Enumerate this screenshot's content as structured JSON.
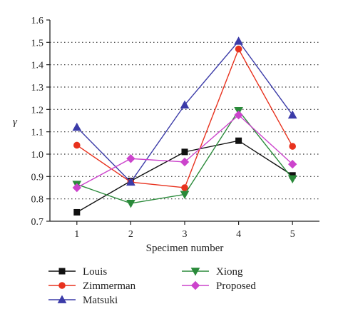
{
  "chart_data": {
    "type": "line",
    "title": "",
    "xlabel": "Specimen number",
    "ylabel": "γ",
    "x": [
      1,
      2,
      3,
      4,
      5
    ],
    "xlim": [
      0.5,
      5.5
    ],
    "ylim": [
      0.7,
      1.6
    ],
    "yticks": [
      "0.7",
      "0.8",
      "0.9",
      "1.0",
      "1.1",
      "1.2",
      "1.3",
      "1.4",
      "1.5",
      "1.6"
    ],
    "xticks": [
      "1",
      "2",
      "3",
      "4",
      "5"
    ],
    "grid": "horizontal dotted",
    "legend_position": "below plot",
    "series": [
      {
        "name": "Louis",
        "color": "#111111",
        "marker": "square",
        "values": [
          0.74,
          0.88,
          1.01,
          1.06,
          0.905
        ]
      },
      {
        "name": "Zimmerman",
        "color": "#e8321e",
        "marker": "circle",
        "values": [
          1.04,
          0.875,
          0.85,
          1.47,
          1.035
        ]
      },
      {
        "name": "Matsuki",
        "color": "#3b3ba8",
        "marker": "triangle-up",
        "values": [
          1.12,
          0.875,
          1.22,
          1.505,
          1.175
        ]
      },
      {
        "name": "Xiong",
        "color": "#2a8a3a",
        "marker": "triangle-down",
        "values": [
          0.865,
          0.78,
          0.82,
          1.195,
          0.89
        ]
      },
      {
        "name": "Proposed",
        "color": "#cc44cc",
        "marker": "diamond",
        "values": [
          0.85,
          0.98,
          0.965,
          1.175,
          0.955
        ]
      }
    ]
  }
}
